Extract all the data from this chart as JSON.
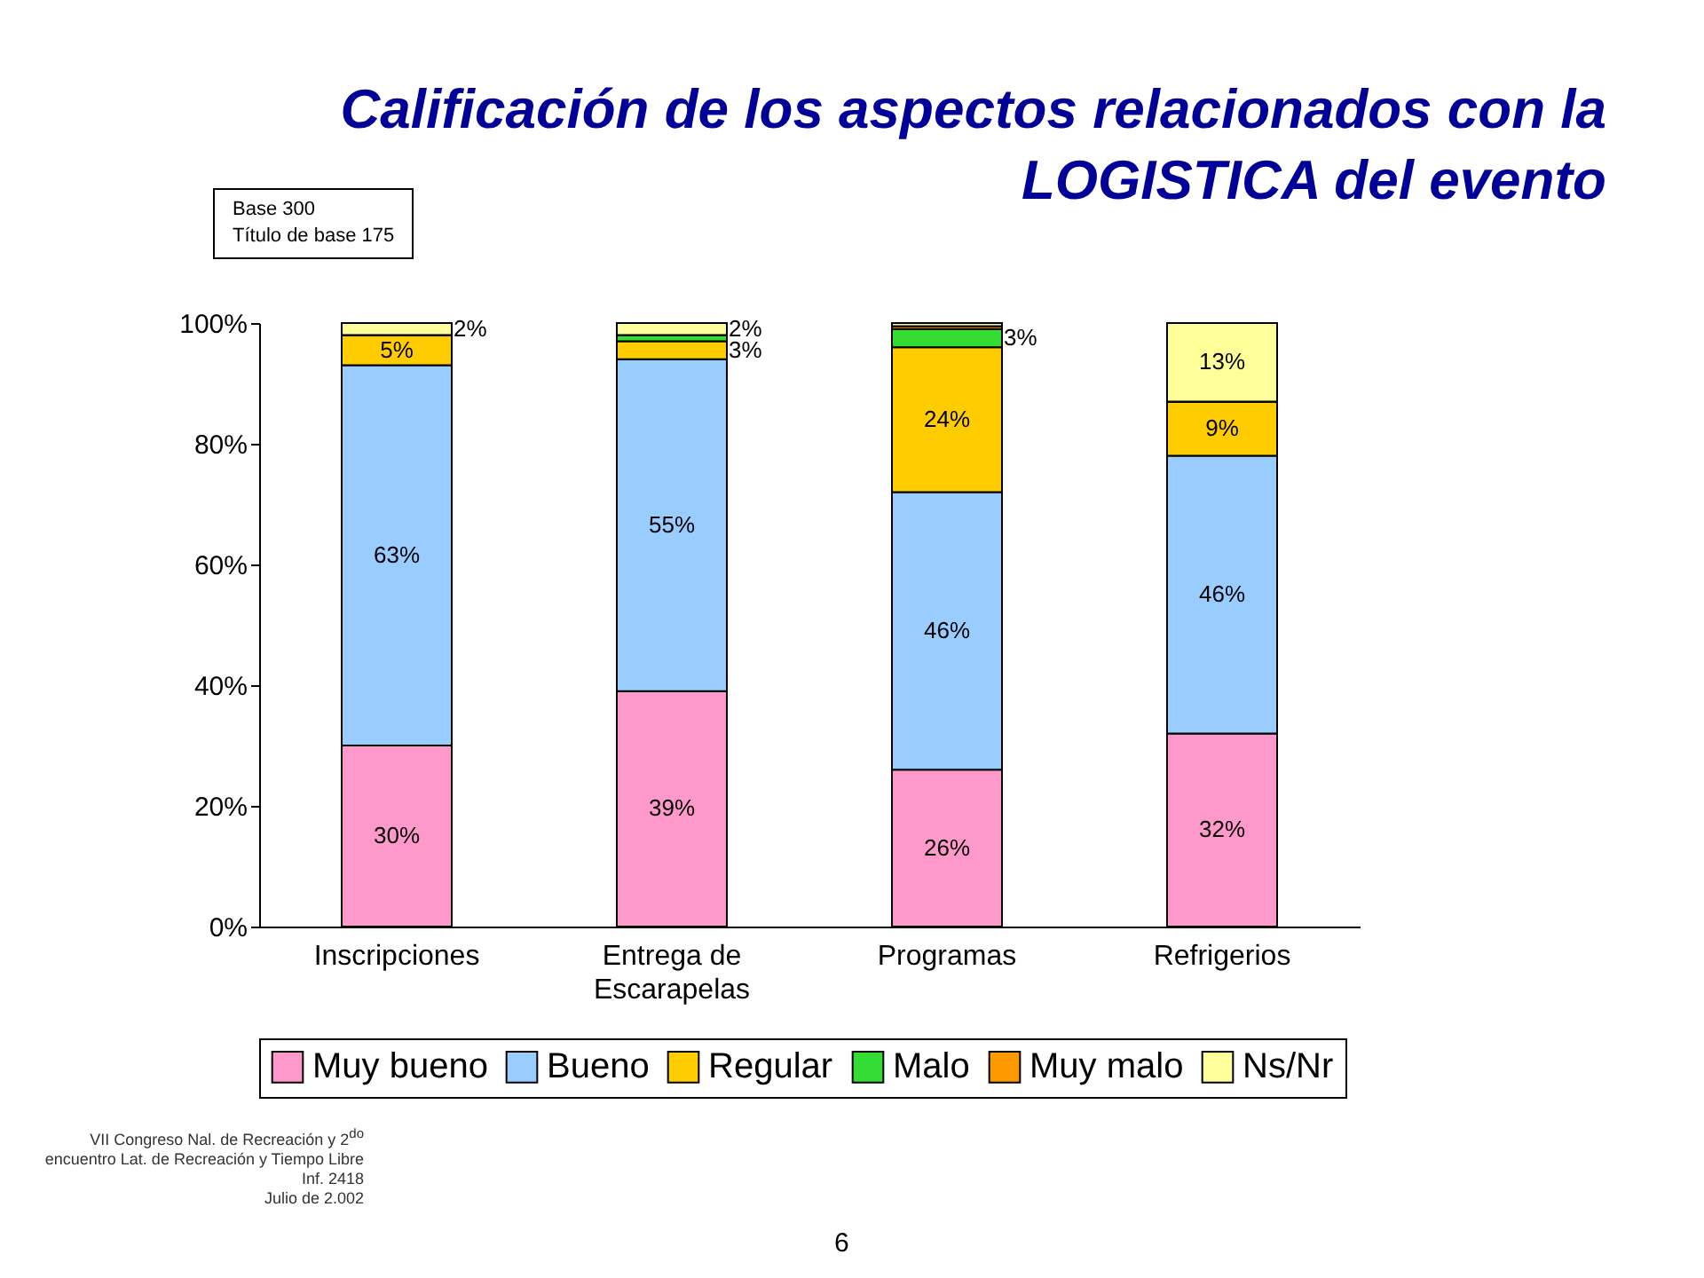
{
  "chart_data": {
    "type": "bar",
    "stacked": true,
    "title": "Calificación de los aspectos relacionados con la LOGISTICA del evento",
    "categories": [
      "Inscripciones",
      "Entrega de Escarapelas",
      "Programas",
      "Refrigerios"
    ],
    "series": [
      {
        "name": "Muy bueno",
        "color": "#ff99cc",
        "values": [
          30,
          39,
          26,
          32
        ],
        "value_labels": [
          "30%",
          "39%",
          "26%",
          "32%"
        ]
      },
      {
        "name": "Bueno",
        "color": "#99ccff",
        "values": [
          63,
          55,
          46,
          46
        ],
        "value_labels": [
          "63%",
          "55%",
          "46%",
          "46%"
        ]
      },
      {
        "name": "Regular",
        "color": "#ffcc00",
        "values": [
          5,
          3,
          24,
          9
        ],
        "value_labels": [
          "5%",
          "3%",
          "24%",
          "9%"
        ]
      },
      {
        "name": "Malo",
        "color": "#33dd33",
        "values": [
          0,
          1,
          3,
          0
        ],
        "value_labels": [
          null,
          null,
          "3%",
          null
        ]
      },
      {
        "name": "Muy malo",
        "color": "#ff9900",
        "values": [
          0,
          0,
          0.5,
          0
        ],
        "value_labels": [
          null,
          null,
          null,
          null
        ]
      },
      {
        "name": "Ns/Nr",
        "color": "#ffff99",
        "values": [
          2,
          2,
          0.5,
          13
        ],
        "value_labels": [
          "2%",
          "2%",
          null,
          "13%"
        ]
      }
    ],
    "ylim": [
      0,
      100
    ],
    "yticks": [
      {
        "value": 0,
        "label": "0%"
      },
      {
        "value": 20,
        "label": "20%"
      },
      {
        "value": 40,
        "label": "40%"
      },
      {
        "value": 60,
        "label": "60%"
      },
      {
        "value": 80,
        "label": "80%"
      },
      {
        "value": 100,
        "label": "100%"
      }
    ],
    "grid": false,
    "legend": "bottom",
    "annotations": [
      "Base 300",
      "Título de base 175",
      "VII Congreso Nal. de Recreación y 2$^{do}$ encuentro Lat. de Recreación y Tiempo Libre",
      "Inf. 2418",
      "Julio de 2.002",
      "6"
    ]
  }
}
